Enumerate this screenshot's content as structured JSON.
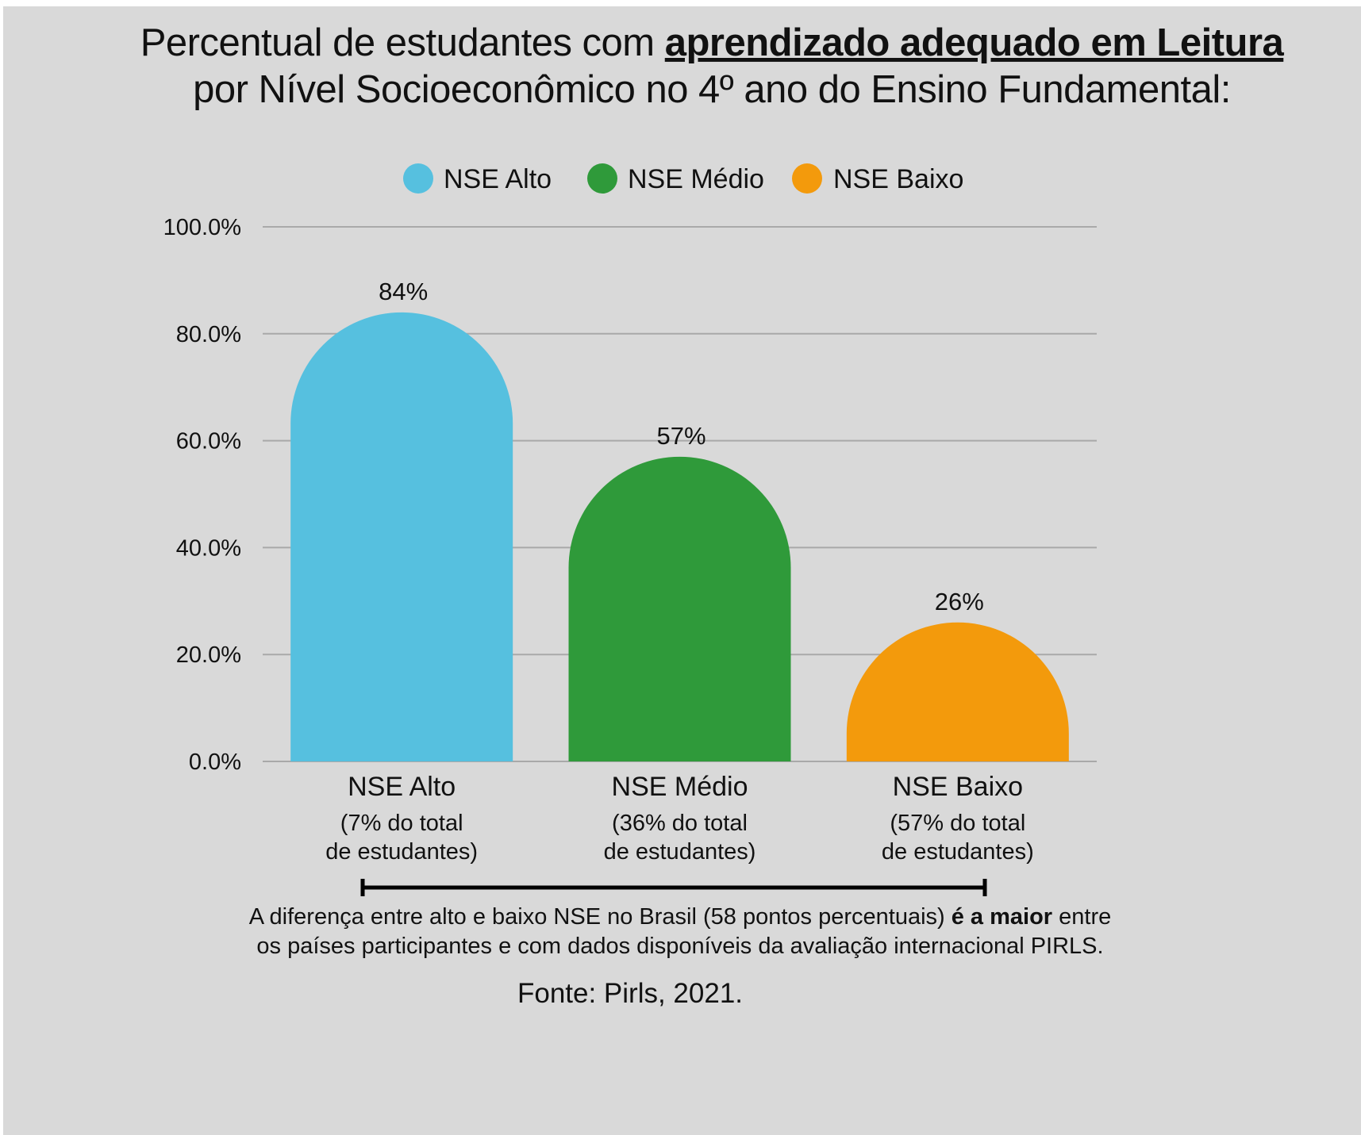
{
  "title": {
    "line1_prefix": "Percentual de estudantes com ",
    "line1_emphasis": "aprendizado adequado em Leitura",
    "line2": "por Nível Socioeconômico no 4º ano do Ensino Fundamental:"
  },
  "legend": [
    {
      "label": "NSE Alto",
      "color": "#56c0df"
    },
    {
      "label": "NSE Médio",
      "color": "#2f9a3a"
    },
    {
      "label": "NSE Baixo",
      "color": "#f39a0c"
    }
  ],
  "chart_data": {
    "type": "bar",
    "categories": [
      "NSE Alto",
      "NSE Médio",
      "NSE Baixo"
    ],
    "category_notes": [
      [
        "(7% do total",
        "de estudantes)"
      ],
      [
        "(36% do total",
        "de estudantes)"
      ],
      [
        "(57% do total",
        "de estudantes)"
      ]
    ],
    "values": [
      84,
      57,
      26
    ],
    "value_labels": [
      "84%",
      "57%",
      "26%"
    ],
    "colors": [
      "#56c0df",
      "#2f9a3a",
      "#f39a0c"
    ],
    "ylim": [
      0,
      100
    ],
    "yticks": [
      0,
      20,
      40,
      60,
      80,
      100
    ],
    "ytick_labels": [
      "0.0%",
      "20.0%",
      "40.0%",
      "60.0%",
      "80.0%",
      "100.0%"
    ],
    "grid": true,
    "legend_position": "top",
    "bar_shape": "rounded-top"
  },
  "note": {
    "line1_prefix": "A diferença entre alto e baixo NSE no Brasil (58 pontos percentuais) ",
    "line1_bold": "é a maior",
    "line1_suffix": " entre",
    "line2": "os países participantes e com dados disponíveis da avaliação internacional PIRLS."
  },
  "source": "Fonte: Pirls, 2021."
}
